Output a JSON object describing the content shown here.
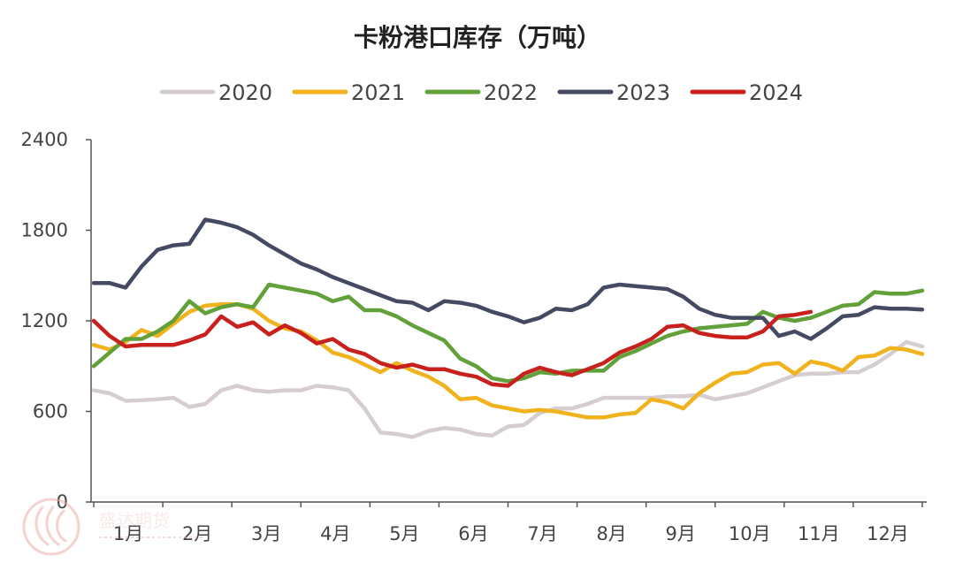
{
  "chart_data": {
    "type": "line",
    "title": "卡粉港口库存（万吨）",
    "xlabel": "",
    "ylabel": "",
    "ylim": [
      0,
      2400
    ],
    "y_ticks": [
      0,
      600,
      1200,
      1800,
      2400
    ],
    "x_ticks": [
      "1月",
      "2月",
      "3月",
      "4月",
      "5月",
      "6月",
      "7月",
      "8月",
      "9月",
      "10月",
      "11月",
      "12月"
    ],
    "x_domain_weeks": [
      1,
      53
    ],
    "grid": false,
    "legend_position": "top",
    "series": [
      {
        "name": "2020",
        "color": "#d6cdd0",
        "x": [
          1,
          2,
          3,
          4,
          5,
          6,
          7,
          8,
          9,
          10,
          11,
          12,
          13,
          14,
          15,
          16,
          17,
          18,
          19,
          20,
          21,
          22,
          23,
          24,
          25,
          26,
          27,
          28,
          29,
          30,
          31,
          32,
          33,
          34,
          35,
          36,
          37,
          38,
          39,
          40,
          41,
          42,
          43,
          44,
          45,
          46,
          47,
          48,
          49,
          50,
          51,
          52,
          53
        ],
        "values": [
          740,
          720,
          670,
          675,
          680,
          690,
          630,
          650,
          740,
          770,
          740,
          730,
          740,
          740,
          770,
          760,
          740,
          620,
          460,
          450,
          430,
          470,
          490,
          480,
          450,
          440,
          500,
          510,
          590,
          620,
          620,
          650,
          690,
          690,
          690,
          690,
          700,
          700,
          710,
          680,
          700,
          720,
          760,
          800,
          840,
          850,
          850,
          860,
          860,
          910,
          980,
          1060,
          1030
        ]
      },
      {
        "name": "2021",
        "color": "#f0b31e",
        "x": [
          1,
          2,
          3,
          4,
          5,
          6,
          7,
          8,
          9,
          10,
          11,
          12,
          13,
          14,
          15,
          16,
          17,
          18,
          19,
          20,
          21,
          22,
          23,
          24,
          25,
          26,
          27,
          28,
          29,
          30,
          31,
          32,
          33,
          34,
          35,
          36,
          37,
          38,
          39,
          40,
          41,
          42,
          43,
          44,
          45,
          46,
          47,
          48,
          49,
          50,
          51,
          52,
          53
        ],
        "values": [
          1040,
          1010,
          1060,
          1140,
          1100,
          1180,
          1260,
          1300,
          1310,
          1310,
          1280,
          1200,
          1150,
          1130,
          1070,
          990,
          960,
          910,
          860,
          920,
          870,
          830,
          770,
          680,
          690,
          640,
          620,
          600,
          610,
          600,
          580,
          560,
          560,
          580,
          590,
          680,
          660,
          620,
          720,
          790,
          850,
          860,
          910,
          920,
          850,
          930,
          910,
          870,
          960,
          970,
          1020,
          1010,
          980
        ]
      },
      {
        "name": "2022",
        "color": "#62a03a",
        "x": [
          1,
          2,
          3,
          4,
          5,
          6,
          7,
          8,
          9,
          10,
          11,
          12,
          13,
          14,
          15,
          16,
          17,
          18,
          19,
          20,
          21,
          22,
          23,
          24,
          25,
          26,
          27,
          28,
          29,
          30,
          31,
          32,
          33,
          34,
          35,
          36,
          37,
          38,
          39,
          40,
          41,
          42,
          43,
          44,
          45,
          46,
          47,
          48,
          49,
          50,
          51,
          52,
          53
        ],
        "values": [
          900,
          990,
          1080,
          1080,
          1130,
          1200,
          1330,
          1250,
          1290,
          1310,
          1290,
          1440,
          1420,
          1400,
          1380,
          1330,
          1360,
          1270,
          1270,
          1230,
          1170,
          1120,
          1070,
          950,
          900,
          820,
          800,
          820,
          860,
          850,
          870,
          870,
          870,
          960,
          1000,
          1050,
          1100,
          1130,
          1150,
          1160,
          1170,
          1180,
          1260,
          1220,
          1200,
          1220,
          1260,
          1300,
          1310,
          1390,
          1380,
          1380,
          1400
        ]
      },
      {
        "name": "2023",
        "color": "#454a63",
        "x": [
          1,
          2,
          3,
          4,
          5,
          6,
          7,
          8,
          9,
          10,
          11,
          12,
          13,
          14,
          15,
          16,
          17,
          18,
          19,
          20,
          21,
          22,
          23,
          24,
          25,
          26,
          27,
          28,
          29,
          30,
          31,
          32,
          33,
          34,
          35,
          36,
          37,
          38,
          39,
          40,
          41,
          42,
          43,
          44,
          45,
          46,
          47,
          48,
          49,
          50,
          51,
          52,
          53
        ],
        "values": [
          1450,
          1450,
          1420,
          1560,
          1670,
          1700,
          1710,
          1870,
          1850,
          1820,
          1770,
          1700,
          1640,
          1580,
          1540,
          1490,
          1450,
          1410,
          1370,
          1330,
          1320,
          1270,
          1330,
          1320,
          1300,
          1260,
          1230,
          1190,
          1220,
          1280,
          1270,
          1310,
          1420,
          1440,
          1430,
          1420,
          1410,
          1360,
          1280,
          1240,
          1220,
          1220,
          1220,
          1100,
          1130,
          1080,
          1150,
          1230,
          1240,
          1290,
          1280,
          1280,
          1275
        ]
      },
      {
        "name": "2024",
        "color": "#c8201c",
        "x": [
          1,
          2,
          3,
          4,
          5,
          6,
          7,
          8,
          9,
          10,
          11,
          12,
          13,
          14,
          15,
          16,
          17,
          18,
          19,
          20,
          21,
          22,
          23,
          24,
          25,
          26,
          27,
          28,
          29,
          30,
          31,
          32,
          33,
          34,
          35,
          36,
          37,
          38,
          39,
          40,
          41,
          42,
          43,
          44,
          45,
          46
        ],
        "values": [
          1200,
          1100,
          1030,
          1040,
          1040,
          1040,
          1070,
          1110,
          1230,
          1160,
          1190,
          1110,
          1170,
          1120,
          1050,
          1080,
          1010,
          980,
          920,
          890,
          910,
          880,
          880,
          850,
          830,
          780,
          770,
          850,
          890,
          860,
          840,
          880,
          920,
          990,
          1030,
          1080,
          1160,
          1170,
          1120,
          1100,
          1090,
          1090,
          1130,
          1230,
          1240,
          1260
        ]
      }
    ]
  },
  "watermark": {
    "company_text": "盛达期货",
    "logo_icon": "shengda-futures-logo-icon"
  }
}
